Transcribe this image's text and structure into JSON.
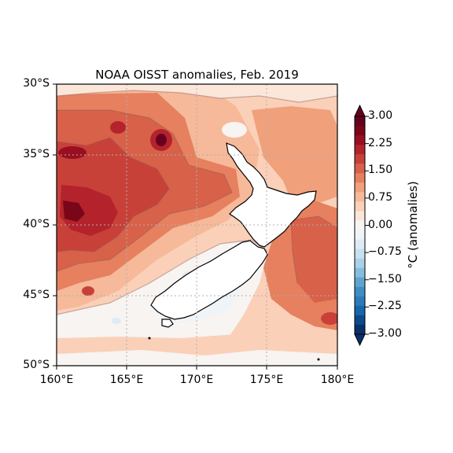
{
  "title": "NOAA OISST anomalies, Feb. 2019",
  "map": {
    "region": "New Zealand",
    "lon_range": [
      160,
      180
    ],
    "lat_range": [
      -50,
      -30
    ],
    "gridlines": "dotted",
    "projection": "PlateCarree"
  },
  "x_ticks": [
    "160°E",
    "165°E",
    "170°E",
    "175°E",
    "180°E"
  ],
  "y_ticks": [
    "30°S",
    "35°S",
    "40°S",
    "45°S",
    "50°S"
  ],
  "colorbar": {
    "label": "°C (anomalies)",
    "min": -3.0,
    "max": 3.0,
    "tick_labels": [
      "3.00",
      "2.25",
      "1.50",
      "0.75",
      "0.00",
      "−0.75",
      "−1.50",
      "−2.25",
      "−3.00"
    ],
    "colormap": "RdBu_r",
    "extend": "both",
    "colors": [
      "#08306b",
      "#0d4a8c",
      "#1965ab",
      "#2b7bba",
      "#3e8ec4",
      "#5fa4d0",
      "#87bddc",
      "#abd0e6",
      "#c8e0ef",
      "#deebf4",
      "#eef4f8",
      "#f7f4f2",
      "#fbe6da",
      "#fad0b8",
      "#f6b999",
      "#f1a07c",
      "#e6805f",
      "#d86149",
      "#c84139",
      "#b4232c",
      "#990f22",
      "#7a0619",
      "#67001f"
    ]
  },
  "colors": {
    "land": "#ffffff",
    "coast": "#000000",
    "grid": "#b0b0b0",
    "contour_line": "#8a5a55"
  }
}
